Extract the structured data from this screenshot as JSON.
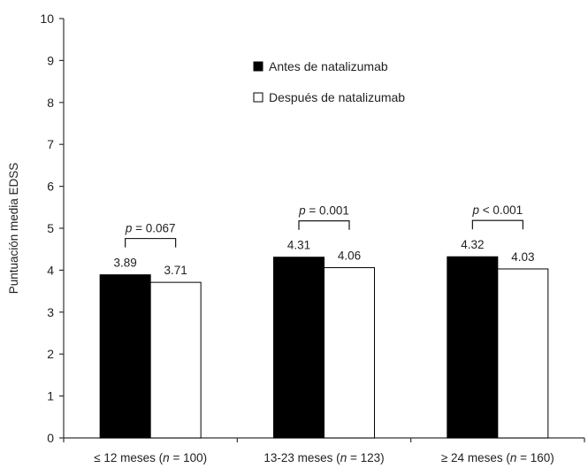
{
  "chart_data": {
    "type": "bar",
    "title": "",
    "xlabel": "",
    "ylabel": "Puntuación media EDSS",
    "ylim": [
      0,
      10
    ],
    "yticks": [
      "0",
      "1",
      "2",
      "3",
      "4",
      "5",
      "6",
      "7",
      "8",
      "9",
      "10"
    ],
    "grid": false,
    "legend_position": "top-right",
    "categories": [
      {
        "pre": "≤ 12 meses (",
        "n": "n",
        "post": " = 100)"
      },
      {
        "pre": "13-23 meses (",
        "n": "n",
        "post": " = 123)"
      },
      {
        "pre": "≥ 24 meses (",
        "n": "n",
        "post": " = 160)"
      }
    ],
    "series": [
      {
        "name": "Antes de natalizumab",
        "color": "#000000",
        "values": [
          3.89,
          4.31,
          4.32
        ],
        "labels": [
          "3.89",
          "4.31",
          "4.32"
        ]
      },
      {
        "name": "Después de natalizumab",
        "color": "#ffffff",
        "values": [
          3.71,
          4.06,
          4.03
        ],
        "labels": [
          "3.71",
          "4.06",
          "4.03"
        ]
      }
    ],
    "annotations": [
      {
        "p": "p",
        "text": " = 0.067"
      },
      {
        "p": "p",
        "text": " = 0.001"
      },
      {
        "p": "p",
        "text": " < 0.001"
      }
    ]
  }
}
